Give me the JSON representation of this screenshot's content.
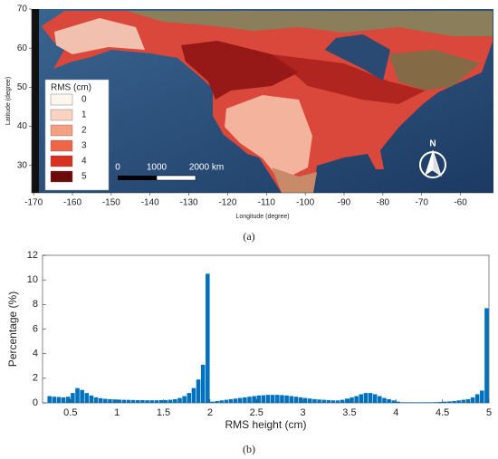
{
  "chart_data": [
    {
      "type": "map",
      "caption": "(a)",
      "xlabel": "Longitude (degree)",
      "ylabel": "Latitude (degree)",
      "xlim": [
        -170.5,
        -51.5
      ],
      "ylim": [
        23,
        70
      ],
      "xticks": [
        -170,
        -160,
        -150,
        -140,
        -130,
        -120,
        -110,
        -100,
        -90,
        -80,
        -70,
        -60
      ],
      "yticks": [
        30,
        40,
        50,
        60,
        70
      ],
      "legend_title": "RMS (cm)",
      "legend": [
        {
          "label": "0",
          "color": "#fdf6ec"
        },
        {
          "label": "1",
          "color": "#fbd3c3"
        },
        {
          "label": "2",
          "color": "#f6a083"
        },
        {
          "label": "3",
          "color": "#ef6548"
        },
        {
          "label": "4",
          "color": "#d7301f"
        },
        {
          "label": "5",
          "color": "#6e0a0a"
        }
      ],
      "scale_bar": [
        "0",
        "1000",
        "2000 km"
      ],
      "north_label": "N"
    },
    {
      "type": "histogram",
      "caption": "(b)",
      "xlabel": "RMS height (cm)",
      "ylabel": "Percentage (%)",
      "color": "#0072bd",
      "xlim": [
        0.2,
        5.0
      ],
      "ylim": [
        0,
        12
      ],
      "xticks": [
        0.5,
        1,
        1.5,
        2,
        2.5,
        3,
        3.5,
        4,
        4.5,
        5
      ],
      "yticks": [
        0,
        2,
        4,
        6,
        8,
        10,
        12
      ],
      "bins": [
        0.25,
        0.3,
        0.35,
        0.4,
        0.45,
        0.5,
        0.55,
        0.6,
        0.65,
        0.7,
        0.75,
        0.8,
        0.85,
        0.9,
        0.95,
        1.0,
        1.05,
        1.1,
        1.15,
        1.2,
        1.25,
        1.3,
        1.35,
        1.4,
        1.45,
        1.5,
        1.55,
        1.6,
        1.65,
        1.7,
        1.75,
        1.8,
        1.85,
        1.9,
        1.95,
        2.0,
        2.05,
        2.1,
        2.15,
        2.2,
        2.25,
        2.3,
        2.35,
        2.4,
        2.45,
        2.5,
        2.55,
        2.6,
        2.65,
        2.7,
        2.75,
        2.8,
        2.85,
        2.9,
        2.95,
        3.0,
        3.05,
        3.1,
        3.15,
        3.2,
        3.25,
        3.3,
        3.35,
        3.4,
        3.45,
        3.5,
        3.55,
        3.6,
        3.65,
        3.7,
        3.75,
        3.8,
        3.85,
        3.9,
        3.95,
        4.0,
        4.05,
        4.1,
        4.15,
        4.2,
        4.25,
        4.3,
        4.35,
        4.4,
        4.45,
        4.5,
        4.55,
        4.6,
        4.65,
        4.7,
        4.75,
        4.8,
        4.85,
        4.9,
        4.95,
        5.0
      ],
      "values": [
        0.55,
        0.5,
        0.48,
        0.45,
        0.5,
        0.8,
        1.2,
        1.05,
        0.8,
        0.6,
        0.45,
        0.38,
        0.33,
        0.3,
        0.28,
        0.26,
        0.25,
        0.24,
        0.23,
        0.22,
        0.22,
        0.21,
        0.21,
        0.21,
        0.22,
        0.23,
        0.25,
        0.3,
        0.4,
        0.55,
        0.8,
        1.2,
        1.9,
        3.1,
        10.5,
        0.1,
        0.15,
        0.2,
        0.25,
        0.3,
        0.35,
        0.4,
        0.45,
        0.5,
        0.55,
        0.6,
        0.62,
        0.65,
        0.65,
        0.65,
        0.63,
        0.6,
        0.55,
        0.5,
        0.45,
        0.4,
        0.35,
        0.3,
        0.27,
        0.25,
        0.22,
        0.2,
        0.2,
        0.25,
        0.35,
        0.45,
        0.55,
        0.7,
        0.8,
        0.8,
        0.7,
        0.55,
        0.4,
        0.3,
        0.2,
        0.1,
        0.05,
        0.05,
        0.05,
        0.05,
        0.05,
        0.05,
        0.05,
        0.06,
        0.08,
        0.1,
        0.12,
        0.15,
        0.2,
        0.25,
        0.3,
        0.45,
        0.7,
        1.0,
        7.7
      ]
    }
  ]
}
